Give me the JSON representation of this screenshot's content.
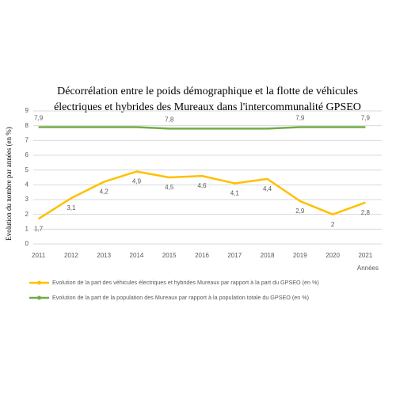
{
  "chart_data": {
    "type": "line",
    "title": [
      "Décorrélation entre le poids démographique et la flotte de véhicules",
      "électriques et hybrides des Mureaux dans l'intercommunalité GPSEO"
    ],
    "y_label": "Evolution du nombre par années (en %)",
    "x_label": "Années",
    "categories": [
      "2011",
      "2012",
      "2013",
      "2014",
      "2015",
      "2016",
      "2017",
      "2018",
      "2019",
      "2020",
      "2021"
    ],
    "series": [
      {
        "name": "Evolution  de la part des véhicules électriques et hybrides Mureaux par rapport à la part du GPSEO (en %)",
        "color": "#ffc000",
        "values": [
          1.7,
          3.1,
          4.2,
          4.9,
          4.5,
          4.6,
          4.1,
          4.4,
          2.9,
          2,
          2.8
        ],
        "value_labels": [
          "1,7",
          "3,1",
          "4,2",
          "4,9",
          "4,5",
          "4,6",
          "4,1",
          "4,4",
          "2,9",
          "2",
          "2,8"
        ]
      },
      {
        "name": "Evolution de la part de la population des Mureaux par rapport à la population totale du GPSEO (en %)",
        "color": "#70ad47",
        "values": [
          7.9,
          7.9,
          7.9,
          7.9,
          7.8,
          7.8,
          7.8,
          7.8,
          7.9,
          7.9,
          7.9
        ],
        "value_labels": [
          "7,9",
          null,
          null,
          null,
          "7,8",
          null,
          null,
          null,
          "7,9",
          null,
          "7,9"
        ]
      }
    ],
    "ylim": [
      0,
      9
    ],
    "yticks": [
      0,
      1,
      2,
      3,
      4,
      5,
      6,
      7,
      8,
      9
    ],
    "grid": true
  }
}
